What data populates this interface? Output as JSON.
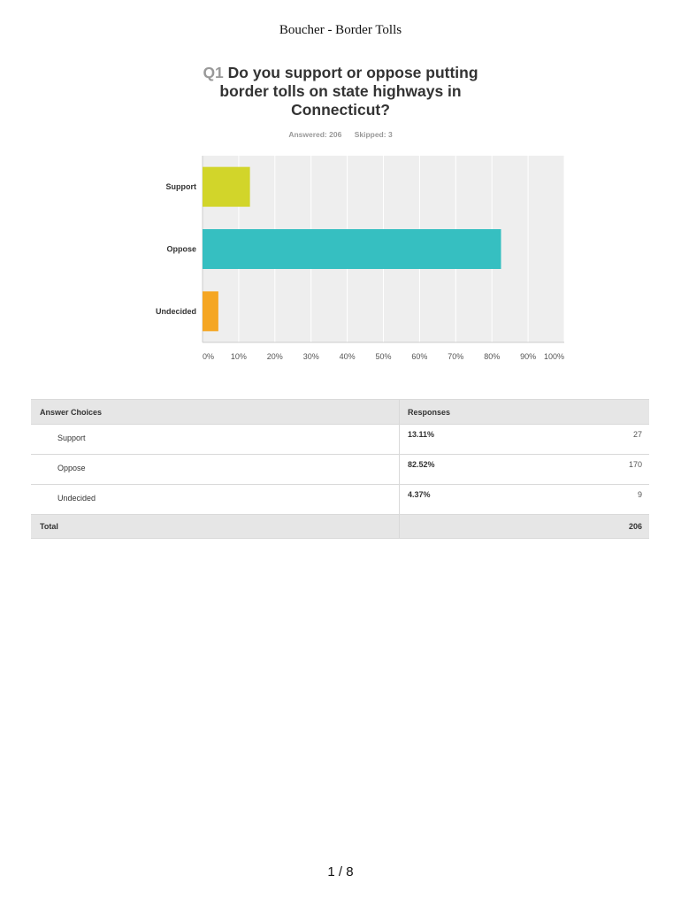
{
  "document": {
    "header": "Boucher - Border Tolls",
    "page": "1 / 8"
  },
  "question": {
    "number": "Q1",
    "text": "Do you support or oppose putting border tolls on state highways in Connecticut?",
    "answered": "Answered: 206",
    "skipped": "Skipped: 3"
  },
  "chart_data": {
    "type": "bar",
    "orientation": "horizontal",
    "categories": [
      "Support",
      "Oppose",
      "Undecided"
    ],
    "values": [
      13.11,
      82.52,
      4.37
    ],
    "colors": [
      "#d2d52a",
      "#36bfc1",
      "#f5a623"
    ],
    "xlim": [
      0,
      100
    ],
    "xticks": [
      "0%",
      "10%",
      "20%",
      "30%",
      "40%",
      "50%",
      "60%",
      "70%",
      "80%",
      "90%",
      "100%"
    ],
    "grid": true,
    "grid_background": "#eeeeee",
    "legend": "none"
  },
  "table": {
    "headers": [
      "Answer Choices",
      "Responses"
    ],
    "rows": [
      {
        "choice": "Support",
        "percent": "13.11%",
        "count": "27"
      },
      {
        "choice": "Oppose",
        "percent": "82.52%",
        "count": "170"
      },
      {
        "choice": "Undecided",
        "percent": "4.37%",
        "count": "9"
      }
    ],
    "total_label": "Total",
    "total_count": "206"
  }
}
